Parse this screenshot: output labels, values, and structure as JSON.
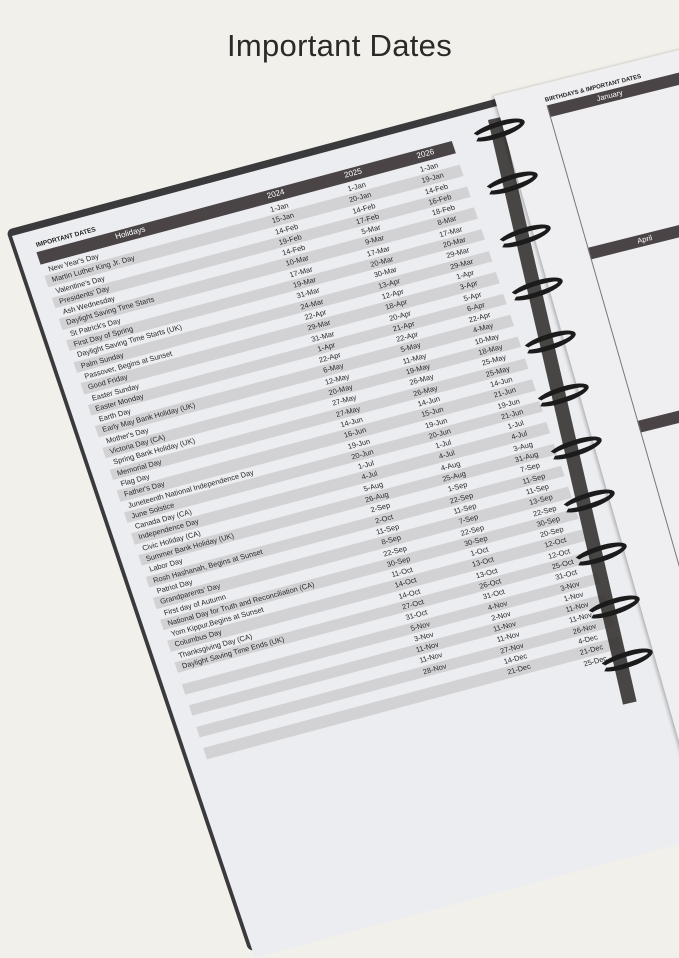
{
  "title": "Important Dates",
  "left_page": {
    "label": "IMPORTANT DATES",
    "columns": [
      "Holidays",
      "2024",
      "2025",
      "2026"
    ],
    "rows": [
      {
        "name": "New Year's Day",
        "d": [
          "1-Jan",
          "1-Jan",
          "1-Jan"
        ]
      },
      {
        "name": "Martin Luther King Jr. Day",
        "d": [
          "15-Jan",
          "20-Jan",
          "19-Jan"
        ]
      },
      {
        "name": "Valentine's Day",
        "d": [
          "14-Feb",
          "14-Feb",
          "14-Feb"
        ]
      },
      {
        "name": "Presidents' Day",
        "d": [
          "19-Feb",
          "17-Feb",
          "16-Feb"
        ]
      },
      {
        "name": "Ash Wednesday",
        "d": [
          "14-Feb",
          "5-Mar",
          "18-Feb"
        ]
      },
      {
        "name": "Daylight Saving Time Starts",
        "d": [
          "10-Mar",
          "9-Mar",
          "8-Mar"
        ]
      },
      {
        "name": "St Patrick's Day",
        "d": [
          "17-Mar",
          "17-Mar",
          "17-Mar"
        ]
      },
      {
        "name": "First Day of Spring",
        "d": [
          "19-Mar",
          "20-Mar",
          "20-Mar"
        ]
      },
      {
        "name": "Daylight Saving Time Starts (UK)",
        "d": [
          "31-Mar",
          "30-Mar",
          "29-Mar"
        ]
      },
      {
        "name": "Palm Sunday",
        "d": [
          "24-Mar",
          "13-Apr",
          "29-Mar"
        ]
      },
      {
        "name": "Passover, Begins at Sunset",
        "d": [
          "22-Apr",
          "12-Apr",
          "1-Apr"
        ]
      },
      {
        "name": "Good Friday",
        "d": [
          "29-Mar",
          "18-Apr",
          "3-Apr"
        ]
      },
      {
        "name": "Easter Sunday",
        "d": [
          "31-Mar",
          "20-Apr",
          "5-Apr"
        ]
      },
      {
        "name": "Easter Monday",
        "d": [
          "1-Apr",
          "21-Apr",
          "6-Apr"
        ]
      },
      {
        "name": "Earth Day",
        "d": [
          "22-Apr",
          "22-Apr",
          "22-Apr"
        ]
      },
      {
        "name": "Early May Bank Holiday (UK)",
        "d": [
          "6-May",
          "5-May",
          "4-May"
        ]
      },
      {
        "name": "Mother's Day",
        "d": [
          "12-May",
          "11-May",
          "10-May"
        ]
      },
      {
        "name": "Victoria Day (CA)",
        "d": [
          "20-May",
          "19-May",
          "18-May"
        ]
      },
      {
        "name": "Spring Bank Holiday (UK)",
        "d": [
          "27-May",
          "26-May",
          "25-May"
        ]
      },
      {
        "name": "Memorial Day",
        "d": [
          "27-May",
          "26-May",
          "25-May"
        ]
      },
      {
        "name": "Flag Day",
        "d": [
          "14-Jun",
          "14-Jun",
          "14-Jun"
        ]
      },
      {
        "name": "Father's Day",
        "d": [
          "16-Jun",
          "15-Jun",
          "21-Jun"
        ]
      },
      {
        "name": "Juneteenth National Independence Day",
        "d": [
          "19-Jun",
          "19-Jun",
          "19-Jun"
        ]
      },
      {
        "name": "June Solstice",
        "d": [
          "20-Jun",
          "20-Jun",
          "21-Jun"
        ]
      },
      {
        "name": "Canada Day (CA)",
        "d": [
          "1-Jul",
          "1-Jul",
          "1-Jul"
        ]
      },
      {
        "name": "Independence Day",
        "d": [
          "4-Jul",
          "4-Jul",
          "4-Jul"
        ]
      },
      {
        "name": "Civic Holiday (CA)",
        "d": [
          "5-Aug",
          "4-Aug",
          "3-Aug"
        ]
      },
      {
        "name": "Summer Bank Holiday (UK)",
        "d": [
          "26-Aug",
          "25-Aug",
          "31-Aug"
        ]
      },
      {
        "name": "Labor Day",
        "d": [
          "2-Sep",
          "1-Sep",
          "7-Sep"
        ]
      },
      {
        "name": "Rosh Hashanah, Begins at Sunset",
        "d": [
          "2-Oct",
          "22-Sep",
          "11-Sep"
        ]
      },
      {
        "name": "Patriot Day",
        "d": [
          "11-Sep",
          "11-Sep",
          "11-Sep"
        ]
      },
      {
        "name": "Grandparents' Day",
        "d": [
          "8-Sep",
          "7-Sep",
          "13-Sep"
        ]
      },
      {
        "name": "First day of Autumn",
        "d": [
          "22-Sep",
          "22-Sep",
          "22-Sep"
        ]
      },
      {
        "name": "National Day for Truth and Reconciliation (CA)",
        "d": [
          "30-Sep",
          "30-Sep",
          "30-Sep"
        ]
      },
      {
        "name": "Yom Kippur,Begins at Sunset",
        "d": [
          "11-Oct",
          "1-Oct",
          "20-Sep"
        ]
      },
      {
        "name": "Columbus Day",
        "d": [
          "14-Oct",
          "13-Oct",
          "12-Oct"
        ]
      },
      {
        "name": "Thanksgiving Day (CA)",
        "d": [
          "14-Oct",
          "13-Oct",
          "12-Oct"
        ]
      },
      {
        "name": "Daylight Saving Time Ends (UK)",
        "d": [
          "27-Oct",
          "26-Oct",
          "25-Oct"
        ]
      },
      {
        "name": "",
        "d": [
          "31-Oct",
          "31-Oct",
          "31-Oct"
        ]
      },
      {
        "name": "",
        "d": [
          "5-Nov",
          "4-Nov",
          "3-Nov"
        ]
      },
      {
        "name": "",
        "d": [
          "3-Nov",
          "2-Nov",
          "1-Nov"
        ]
      },
      {
        "name": "",
        "d": [
          "11-Nov",
          "11-Nov",
          "11-Nov"
        ]
      },
      {
        "name": "",
        "d": [
          "11-Nov",
          "11-Nov",
          "11-Nov"
        ]
      },
      {
        "name": "",
        "d": [
          "28-Nov",
          "27-Nov",
          "26-Nov"
        ]
      },
      {
        "name": "",
        "d": [
          "",
          "14-Dec",
          "4-Dec"
        ]
      },
      {
        "name": "",
        "d": [
          "",
          "21-Dec",
          "21-Dec"
        ]
      },
      {
        "name": "",
        "d": [
          "",
          "",
          "25-Dec"
        ]
      }
    ]
  },
  "right_page": {
    "label": "BIRTHDAYS & IMPORTANT DATES",
    "months": [
      "January",
      "April"
    ]
  },
  "colors": {
    "header_bar": "#4a4446",
    "stripe": "#d2d2d5",
    "background": "#f2f0ea",
    "rings": "#1b1b1b"
  }
}
